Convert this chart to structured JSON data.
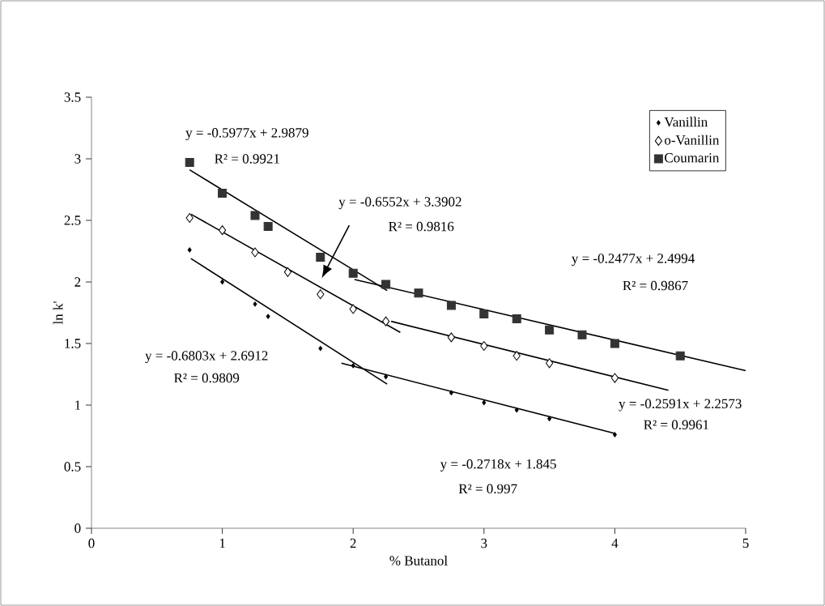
{
  "chart_data": {
    "type": "scatter",
    "xlabel": "% Butanol",
    "ylabel": "ln k'",
    "xlim": [
      0,
      5
    ],
    "ylim": [
      0,
      3.5
    ],
    "xticks": [
      0,
      1,
      2,
      3,
      4,
      5
    ],
    "yticks": [
      0,
      0.5,
      1,
      1.5,
      2,
      2.5,
      3,
      3.5
    ],
    "legend": "top right",
    "series": [
      {
        "name": "Vanillin",
        "color": "#000000",
        "marker": "diamond",
        "x": [
          0.75,
          1,
          1.25,
          1.35,
          1.75,
          2,
          2.25,
          2.75,
          3,
          3.25,
          3.5,
          4
        ],
        "values": [
          2.26,
          2.0,
          1.82,
          1.72,
          1.46,
          1.32,
          1.23,
          1.1,
          1.02,
          0.96,
          0.89,
          0.76
        ]
      },
      {
        "name": "o-Vanillin",
        "color": "#000000",
        "marker": "diamond",
        "x": [
          0.75,
          1,
          1.25,
          1.5,
          1.75,
          2,
          2.25,
          2.75,
          3,
          3.25,
          3.5,
          4
        ],
        "values": [
          2.52,
          2.42,
          2.24,
          2.08,
          1.9,
          1.78,
          1.68,
          1.55,
          1.48,
          1.4,
          1.34,
          1.22
        ]
      },
      {
        "name": "Coumarin",
        "color": "#333333",
        "marker": "square",
        "x": [
          0.75,
          1,
          1.25,
          1.35,
          1.75,
          2,
          2.25,
          2.5,
          2.75,
          3,
          3.25,
          3.5,
          3.75,
          4,
          4.5
        ],
        "values": [
          2.97,
          2.72,
          2.54,
          2.45,
          2.2,
          2.07,
          1.98,
          1.91,
          1.81,
          1.74,
          1.7,
          1.61,
          1.57,
          1.5,
          1.4
        ]
      },
      {
        "type": "line",
        "color": "#000000",
        "marker": "none",
        "x": [
          0.75,
          2.26
        ],
        "values": [
          2.91,
          1.93
        ]
      },
      {
        "type": "line",
        "color": "#000000",
        "marker": "none",
        "x": [
          2.01,
          5
        ],
        "values": [
          2.02,
          1.28
        ]
      },
      {
        "type": "line",
        "color": "#000000",
        "marker": "none",
        "x": [
          0.76,
          2.36
        ],
        "values": [
          2.55,
          1.59
        ]
      },
      {
        "type": "line",
        "color": "#000000",
        "marker": "none",
        "x": [
          2.29,
          4.41
        ],
        "values": [
          1.68,
          1.12
        ]
      },
      {
        "type": "line",
        "color": "#000000",
        "marker": "none",
        "x": [
          0.76,
          2.26
        ],
        "values": [
          2.19,
          1.17
        ]
      },
      {
        "type": "line",
        "color": "#000000",
        "marker": "none",
        "x": [
          1.91,
          4.0
        ],
        "values": [
          1.34,
          0.77
        ]
      }
    ],
    "annotations": [
      "y = -0.5977x + 2.9879",
      "R² = 0.9921",
      "y = -0.6552x + 3.3902",
      "R² = 0.9816",
      "y = -0.2477x + 2.4994",
      "R² = 0.9867",
      "y = -0.2591x + 2.2573",
      "R² = 0.9961",
      "y = -0.2718x + 1.845",
      "R² = 0.997",
      "y = -0.6803x + 2.6912",
      "R² = 0.9809"
    ]
  }
}
